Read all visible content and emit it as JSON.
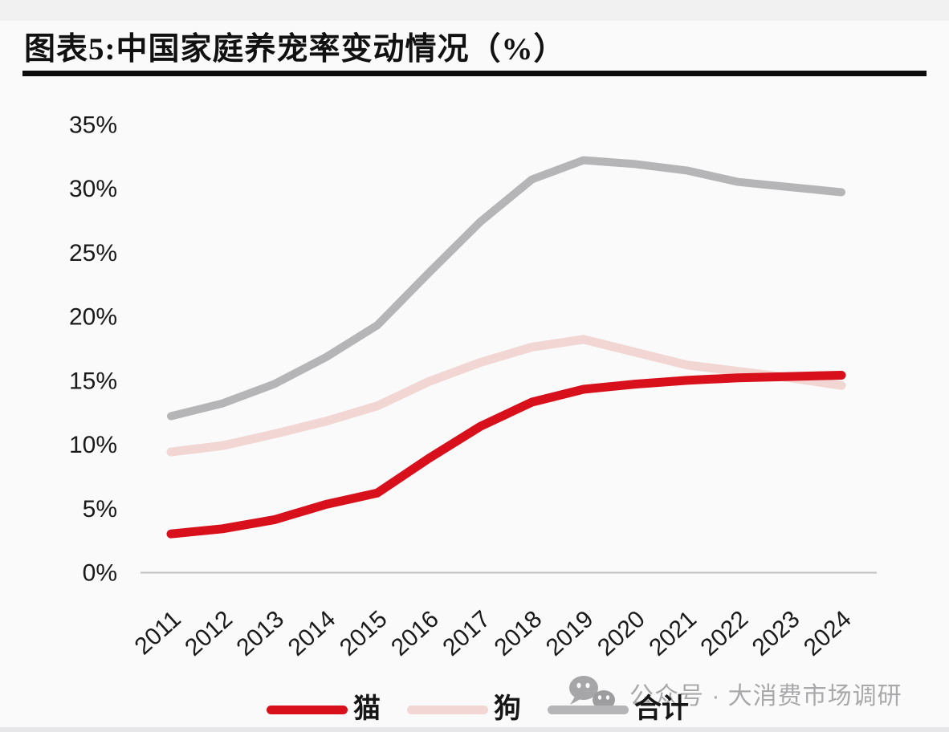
{
  "title": "图表5:中国家庭养宠率变动情况（%）",
  "watermark": {
    "icon": "wechat-icon",
    "text": "公众号 · 大消费市场调研"
  },
  "legend": {
    "items": [
      "猫",
      "狗",
      "合计"
    ]
  },
  "chart_data": {
    "type": "line",
    "title": "图表5:中国家庭养宠率变动情况（%）",
    "xlabel": "",
    "ylabel": "",
    "x_ticks": [
      "2011",
      "2012",
      "2013",
      "2014",
      "2015",
      "2016",
      "2017",
      "2018",
      "2019",
      "2020",
      "2021",
      "2022",
      "2023",
      "2024"
    ],
    "y_ticks": [
      "0%",
      "5%",
      "10%",
      "15%",
      "20%",
      "25%",
      "30%",
      "35%"
    ],
    "ylim": [
      0,
      35
    ],
    "y_tick_step": 5,
    "grid": false,
    "legend_position": "bottom",
    "axis_color": "#c0c0c2",
    "tick_label_color": "#1a1a1a",
    "series": [
      {
        "name": "猫",
        "color": "#d8101b",
        "values": [
          3.0,
          3.4,
          4.1,
          5.3,
          6.2,
          8.9,
          11.4,
          13.3,
          14.3,
          14.7,
          15.0,
          15.2,
          15.3,
          15.4
        ]
      },
      {
        "name": "狗",
        "color": "#f2d6d3",
        "values": [
          9.4,
          9.9,
          10.8,
          11.8,
          13.0,
          14.9,
          16.4,
          17.6,
          18.2,
          17.2,
          16.2,
          15.7,
          15.2,
          14.6
        ]
      },
      {
        "name": "合计",
        "color": "#b5b4b6",
        "values": [
          12.2,
          13.2,
          14.7,
          16.8,
          19.3,
          23.4,
          27.4,
          30.7,
          32.2,
          31.9,
          31.4,
          30.5,
          30.1,
          29.7
        ]
      }
    ]
  }
}
